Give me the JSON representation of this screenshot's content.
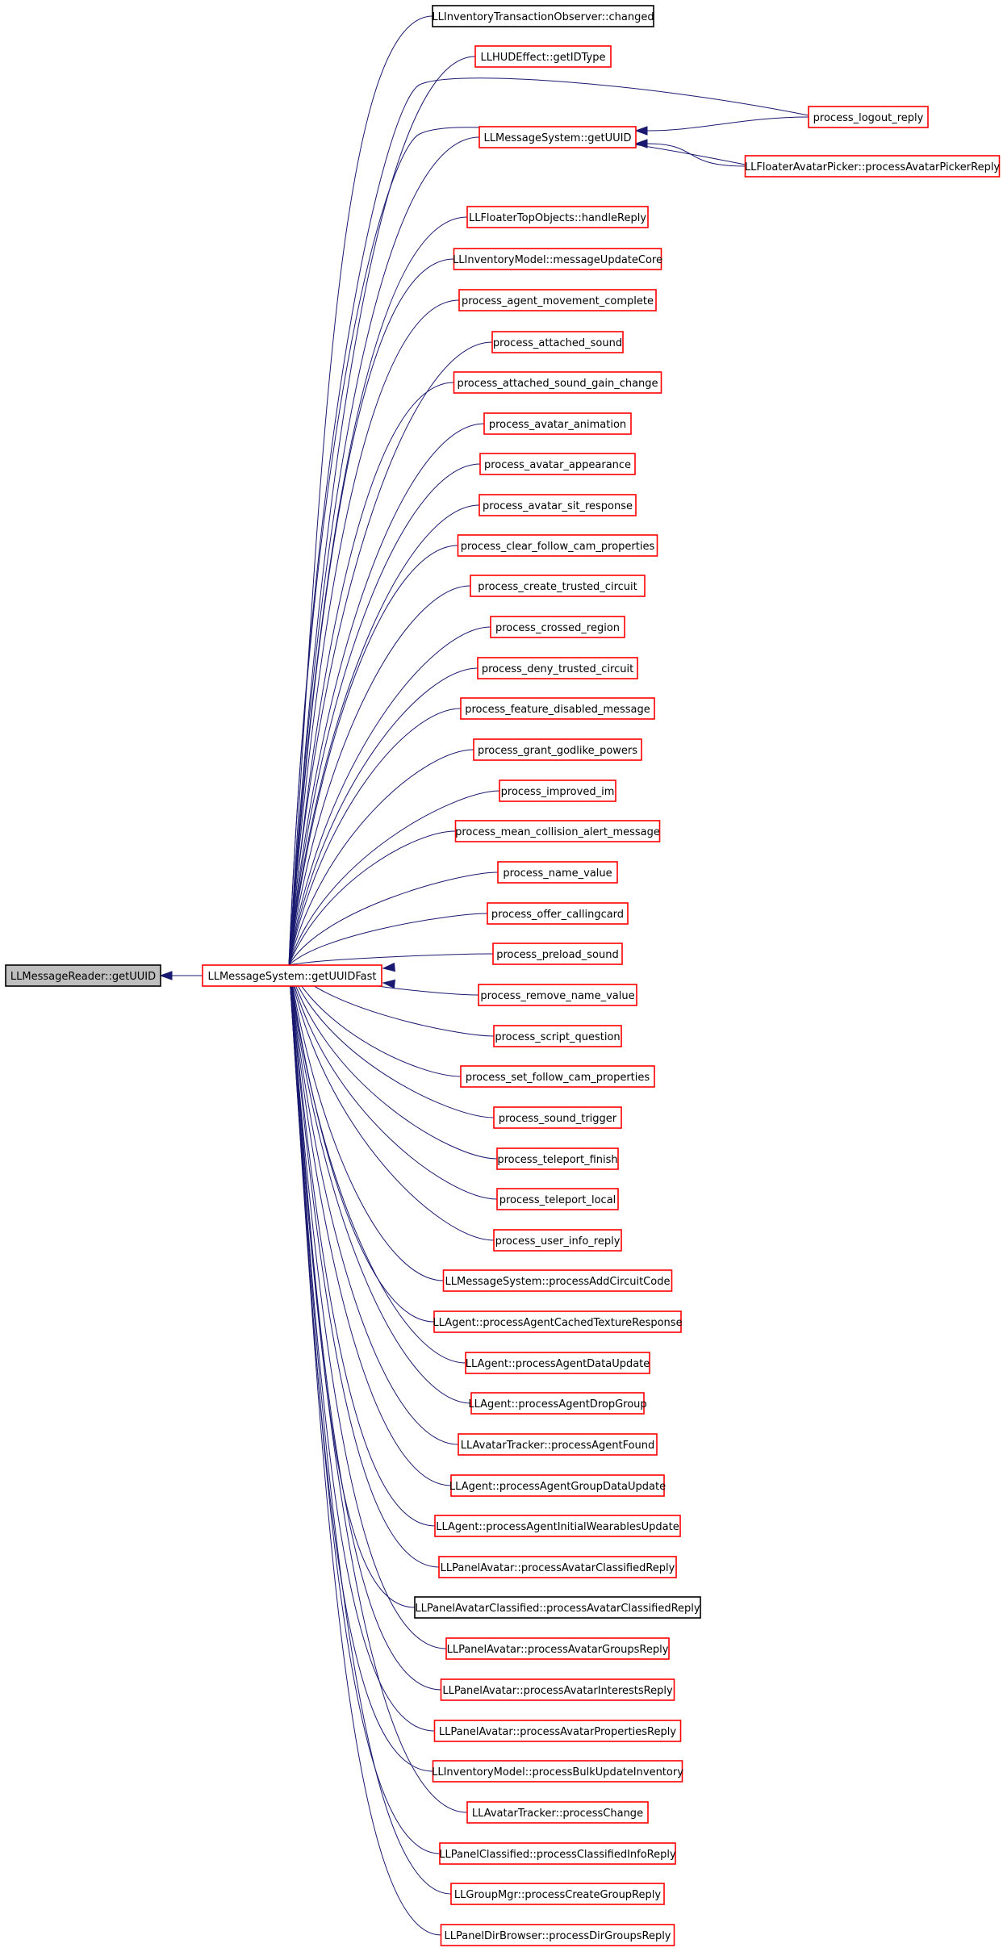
{
  "colors": {
    "edge": "#191970",
    "documented_border": "#ff0000",
    "undocumented_border": "#000000",
    "root_fill": "#bfbfbf"
  },
  "root": {
    "label": "LLMessageReader::getUUID"
  },
  "hub": {
    "label": "LLMessageSystem::getUUIDFast",
    "border": "red"
  },
  "mid": {
    "label": "LLMessageSystem::getUUID",
    "border": "red"
  },
  "right_callers": [
    {
      "label": "process_logout_reply",
      "border": "red"
    },
    {
      "label": "LLFloaterAvatarPicker::processAvatarPickerReply",
      "border": "red"
    }
  ],
  "callers": [
    {
      "label": "LLInventoryTransactionObserver::changed",
      "border": "black"
    },
    {
      "label": "LLHUDEffect::getIDType",
      "border": "red"
    },
    {
      "label": "LLFloaterTopObjects::handleReply",
      "border": "red"
    },
    {
      "label": "LLInventoryModel::messageUpdateCore",
      "border": "red"
    },
    {
      "label": "process_agent_movement_complete",
      "border": "red"
    },
    {
      "label": "process_attached_sound",
      "border": "red"
    },
    {
      "label": "process_attached_sound_gain_change",
      "border": "red"
    },
    {
      "label": "process_avatar_animation",
      "border": "red"
    },
    {
      "label": "process_avatar_appearance",
      "border": "red"
    },
    {
      "label": "process_avatar_sit_response",
      "border": "red"
    },
    {
      "label": "process_clear_follow_cam_properties",
      "border": "red"
    },
    {
      "label": "process_create_trusted_circuit",
      "border": "red"
    },
    {
      "label": "process_crossed_region",
      "border": "red"
    },
    {
      "label": "process_deny_trusted_circuit",
      "border": "red"
    },
    {
      "label": "process_feature_disabled_message",
      "border": "red"
    },
    {
      "label": "process_grant_godlike_powers",
      "border": "red"
    },
    {
      "label": "process_improved_im",
      "border": "red"
    },
    {
      "label": "process_mean_collision_alert_message",
      "border": "red"
    },
    {
      "label": "process_name_value",
      "border": "red"
    },
    {
      "label": "process_offer_callingcard",
      "border": "red"
    },
    {
      "label": "process_preload_sound",
      "border": "red"
    },
    {
      "label": "process_remove_name_value",
      "border": "red"
    },
    {
      "label": "process_script_question",
      "border": "red"
    },
    {
      "label": "process_set_follow_cam_properties",
      "border": "red"
    },
    {
      "label": "process_sound_trigger",
      "border": "red"
    },
    {
      "label": "process_teleport_finish",
      "border": "red"
    },
    {
      "label": "process_teleport_local",
      "border": "red"
    },
    {
      "label": "process_user_info_reply",
      "border": "red"
    },
    {
      "label": "LLMessageSystem::processAddCircuitCode",
      "border": "red"
    },
    {
      "label": "LLAgent::processAgentCachedTextureResponse",
      "border": "red"
    },
    {
      "label": "LLAgent::processAgentDataUpdate",
      "border": "red"
    },
    {
      "label": "LLAgent::processAgentDropGroup",
      "border": "red"
    },
    {
      "label": "LLAvatarTracker::processAgentFound",
      "border": "red"
    },
    {
      "label": "LLAgent::processAgentGroupDataUpdate",
      "border": "red"
    },
    {
      "label": "LLAgent::processAgentInitialWearablesUpdate",
      "border": "red"
    },
    {
      "label": "LLPanelAvatar::processAvatarClassifiedReply",
      "border": "red"
    },
    {
      "label": "LLPanelAvatarClassified::processAvatarClassifiedReply",
      "border": "black"
    },
    {
      "label": "LLPanelAvatar::processAvatarGroupsReply",
      "border": "red"
    },
    {
      "label": "LLPanelAvatar::processAvatarInterestsReply",
      "border": "red"
    },
    {
      "label": "LLPanelAvatar::processAvatarPropertiesReply",
      "border": "red"
    },
    {
      "label": "LLInventoryModel::processBulkUpdateInventory",
      "border": "red"
    },
    {
      "label": "LLAvatarTracker::processChange",
      "border": "red"
    },
    {
      "label": "LLPanelClassified::processClassifiedInfoReply",
      "border": "red"
    },
    {
      "label": "LLGroupMgr::processCreateGroupReply",
      "border": "red"
    },
    {
      "label": "LLPanelDirBrowser::processDirGroupsReply",
      "border": "red"
    }
  ]
}
